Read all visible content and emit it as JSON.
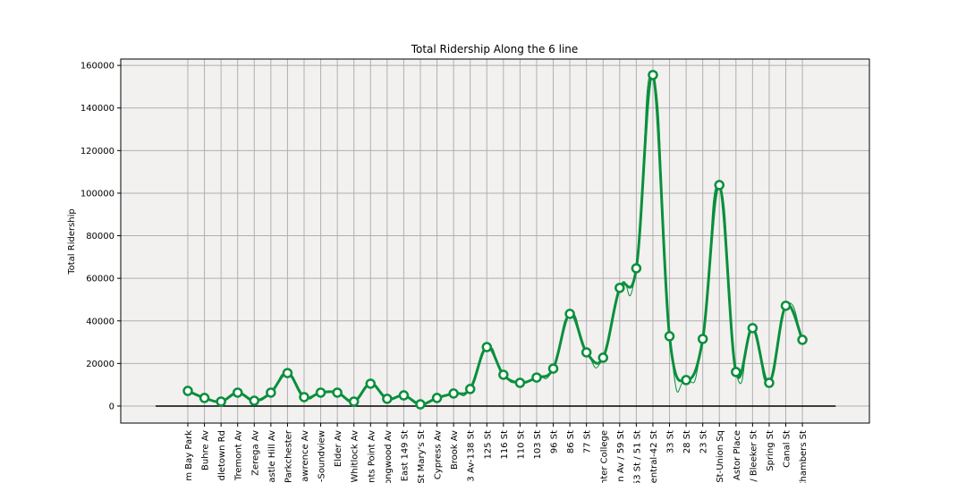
{
  "chart_data": {
    "type": "line",
    "title": "Total Ridership Along the 6 line",
    "ylabel": "Total Ridership",
    "categories": [
      "m Bay Park",
      "Buhre Av",
      "dletown Rd",
      "Tremont Av",
      "Zerega Av",
      "astle Hill Av",
      "Parkchester",
      "awrence Av",
      "-Soundview",
      "Elder Av",
      "Whitlock Av",
      "nts Point Av",
      "ongwood Av",
      "East 149 St",
      "St Mary's St",
      "Cypress Av",
      "Brook Av",
      "3 Av-138 St",
      "125 St",
      "116 St",
      "110 St",
      "103 St",
      "96 St",
      "86 St",
      "77 St",
      "nter College",
      "n Av / 59 St",
      "53 St / 51 St",
      "entral-42 St",
      "33 St",
      "28 St",
      "23 St",
      "St-Union Sq",
      "Astor Place",
      "/ Bleeker St",
      "Spring St",
      "Canal St",
      "Chambers St"
    ],
    "series": [
      {
        "name": "Total Ridership",
        "color": "#0a8f3c",
        "values": [
          7100,
          3800,
          2100,
          6300,
          2500,
          6300,
          15500,
          4200,
          6300,
          6300,
          2100,
          10500,
          3400,
          5000,
          800,
          3800,
          5900,
          8000,
          27700,
          14700,
          10900,
          13400,
          17600,
          43300,
          25200,
          22700,
          55500,
          64700,
          155500,
          32800,
          12200,
          31500,
          103800,
          16000,
          36600,
          10900,
          47100,
          31100
        ]
      }
    ],
    "ylim": [
      -8000,
      163000
    ],
    "yticks": [
      0,
      20000,
      40000,
      60000,
      80000,
      100000,
      120000,
      140000,
      160000
    ],
    "grid": true
  }
}
